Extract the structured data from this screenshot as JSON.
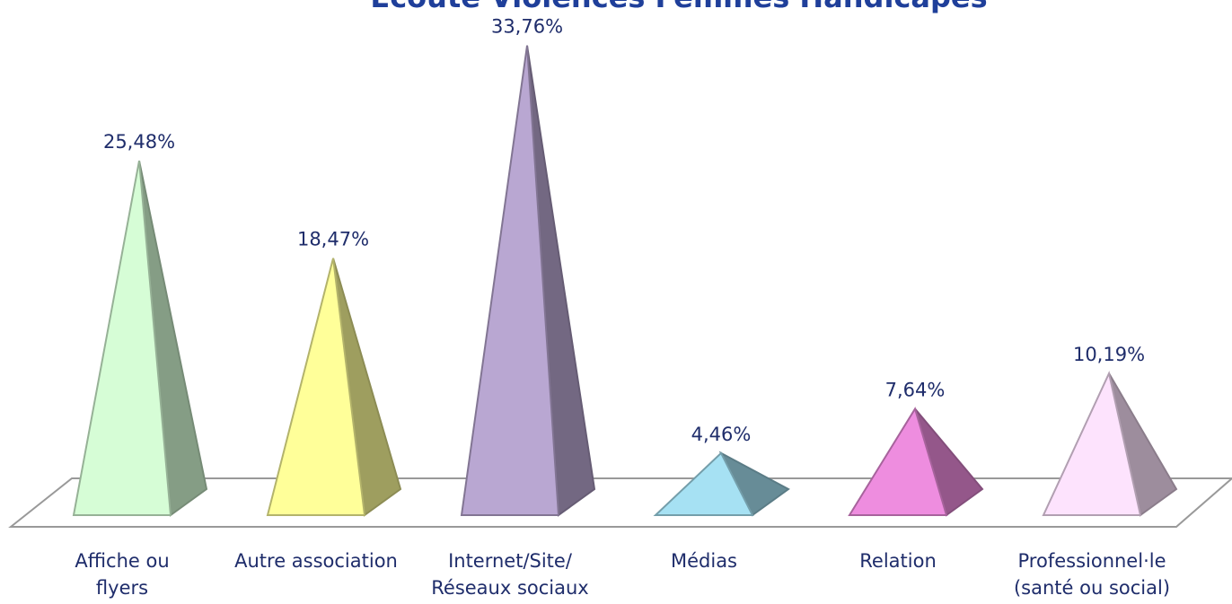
{
  "chart_data": {
    "type": "pyramid",
    "title": "Écoute Violences Femmes Handicapés",
    "categories": [
      [
        "Affiche ou",
        "flyers"
      ],
      [
        "Autre association"
      ],
      [
        "Internet/Site/",
        "Réseaux sociaux"
      ],
      [
        "Médias"
      ],
      [
        "Relation"
      ],
      [
        "Professionnel·le",
        "(santé ou social)"
      ]
    ],
    "values": [
      25.48,
      18.47,
      33.76,
      4.46,
      7.64,
      10.19
    ],
    "value_labels": [
      "25,48%",
      "18,47%",
      "33,76%",
      "4,46%",
      "7,64%",
      "10,19%"
    ],
    "colors": [
      "#d6fdd6",
      "#ffff99",
      "#b9a7d2",
      "#a6e1f3",
      "#ee8ddf",
      "#fde3fd"
    ]
  }
}
